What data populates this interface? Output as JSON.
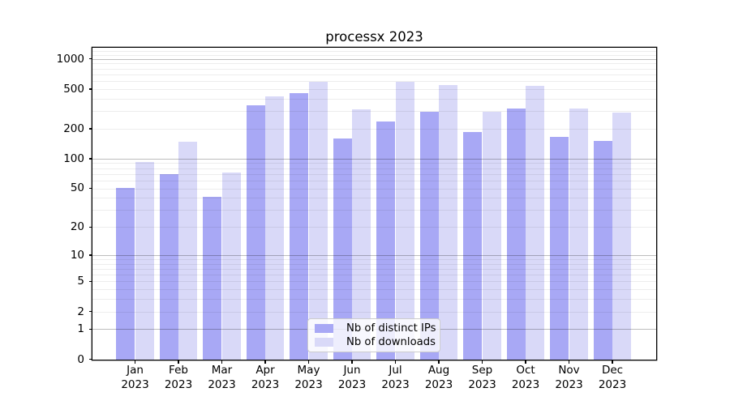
{
  "title": "processx 2023",
  "colors": {
    "distinct_ips_bar": "#a8a8f5",
    "downloads_bar": "#d9d9f8",
    "axis": "#000000"
  },
  "chart_data": {
    "type": "bar",
    "title": "processx 2023",
    "scale": "log1p",
    "grid": "both",
    "legend_position": "lower-center",
    "categories": [
      "Jan 2023",
      "Feb 2023",
      "Mar 2023",
      "Apr 2023",
      "May 2023",
      "Jun 2023",
      "Jul 2023",
      "Aug 2023",
      "Sep 2023",
      "Oct 2023",
      "Nov 2023",
      "Dec 2023"
    ],
    "series": [
      {
        "name": "Nb of distinct IPs",
        "color": "#a8a8f5",
        "values": [
          50,
          70,
          41,
          345,
          452,
          160,
          237,
          295,
          185,
          320,
          164,
          150
        ]
      },
      {
        "name": "Nb of downloads",
        "color": "#d9d9f8",
        "values": [
          93,
          148,
          72,
          425,
          588,
          310,
          592,
          549,
          296,
          535,
          320,
          290
        ]
      }
    ],
    "yticks": [
      0,
      1,
      2,
      5,
      10,
      20,
      50,
      100,
      200,
      500,
      1000
    ],
    "ylim": [
      0,
      1290
    ],
    "xlabel": "",
    "ylabel": ""
  }
}
